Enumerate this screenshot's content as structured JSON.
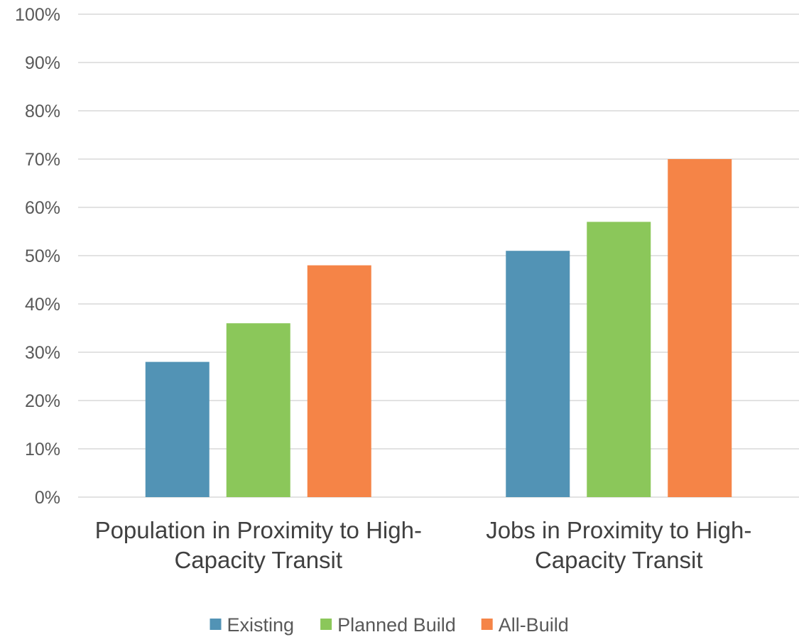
{
  "chart_data": {
    "type": "bar",
    "title": "",
    "xlabel": "",
    "ylabel": "",
    "ylim": [
      0,
      100
    ],
    "yticks": [
      "0%",
      "10%",
      "20%",
      "30%",
      "40%",
      "50%",
      "60%",
      "70%",
      "80%",
      "90%",
      "100%"
    ],
    "categories": [
      [
        "Population in Proximity to High-",
        "Capacity Transit"
      ],
      [
        "Jobs in Proximity to High-",
        "Capacity Transit"
      ]
    ],
    "series": [
      {
        "name": "Existing",
        "color": "#5293b5",
        "values": [
          28,
          51
        ]
      },
      {
        "name": "Planned Build",
        "color": "#8bc75a",
        "values": [
          36,
          57
        ]
      },
      {
        "name": "All-Build",
        "color": "#f58447",
        "values": [
          48,
          70
        ]
      }
    ],
    "grid": true,
    "legend": "bottom"
  }
}
